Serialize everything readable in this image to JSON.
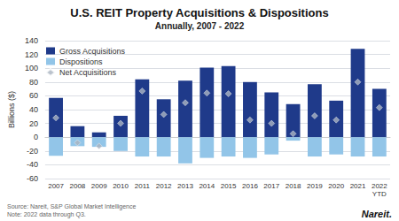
{
  "chart_data": {
    "type": "bar",
    "title": "U.S. REIT Property Acquisitions & Dispositions",
    "subtitle": "Annually, 2007 - 2022",
    "categories": [
      "2007",
      "2008",
      "2009",
      "2010",
      "2011",
      "2012",
      "2013",
      "2014",
      "2015",
      "2016",
      "2017",
      "2018",
      "2019",
      "2020",
      "2021",
      "2022\nYTD"
    ],
    "series": [
      {
        "name": "Gross Acquisitions",
        "type": "bar",
        "color": "#1f3a8a",
        "values": [
          57,
          16,
          7,
          31,
          84,
          55,
          82,
          101,
          103,
          80,
          65,
          48,
          77,
          53,
          128,
          70
        ]
      },
      {
        "name": "Dispositions",
        "type": "bar",
        "color": "#92c5e8",
        "values": [
          -27,
          -13,
          -14,
          -20,
          -28,
          -28,
          -38,
          -30,
          -28,
          -30,
          -25,
          -5,
          -28,
          -25,
          -28,
          -28
        ]
      },
      {
        "name": "Net Acquisitions",
        "type": "scatter",
        "color": "#aab4c0",
        "marker": "diamond",
        "values": [
          28,
          -8,
          -13,
          20,
          67,
          33,
          50,
          64,
          63,
          25,
          20,
          5,
          31,
          25,
          80,
          43
        ]
      }
    ],
    "ylabel": "Billions ($)",
    "ylim": [
      -60,
      140
    ],
    "yticks": [
      -60,
      -40,
      -20,
      0,
      20,
      40,
      60,
      80,
      100,
      120,
      140
    ],
    "grid": true,
    "legend": "upper left",
    "annotations": [
      "Source: Nareit, S&P Global Market Intelligence\nNote: 2022 data through Q3.",
      "Nareit."
    ]
  }
}
